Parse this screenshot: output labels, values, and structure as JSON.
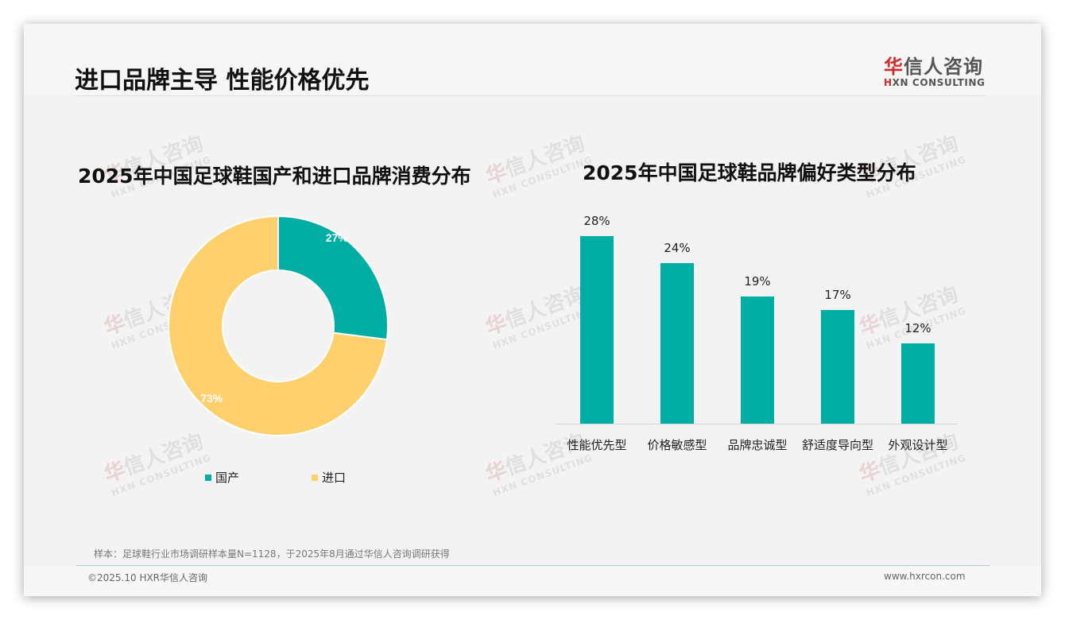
{
  "header": {
    "title": "进口品牌主导 性能价格优先",
    "logo": {
      "cn_red": "华",
      "cn_rest": "信人咨询",
      "en_prefix": "H",
      "en_rest": "XN CONSULTING"
    }
  },
  "left_chart": {
    "title": "2025年中国足球鞋国产和进口品牌消费分布",
    "slices": [
      {
        "label": "国产",
        "value": 27,
        "display": "27%",
        "color": "#00ada3"
      },
      {
        "label": "进口",
        "value": 73,
        "display": "73%",
        "color": "#fdd06d"
      }
    ],
    "legend": [
      {
        "label": "国产",
        "color": "#00ada3"
      },
      {
        "label": "进口",
        "color": "#fdd06d"
      }
    ]
  },
  "right_chart": {
    "title": "2025年中国足球鞋品牌偏好类型分布",
    "bar_color": "#00ada3",
    "bars": [
      {
        "category": "性能优先型",
        "value": 28,
        "display": "28%"
      },
      {
        "category": "价格敏感型",
        "value": 24,
        "display": "24%"
      },
      {
        "category": "品牌忠诚型",
        "value": 19,
        "display": "19%"
      },
      {
        "category": "舒适度导向型",
        "value": 17,
        "display": "17%"
      },
      {
        "category": "外观设计型",
        "value": 12,
        "display": "12%"
      }
    ]
  },
  "chart_data": [
    {
      "type": "pie",
      "title": "2025年中国足球鞋国产和进口品牌消费分布",
      "categories": [
        "国产",
        "进口"
      ],
      "values": [
        27,
        73
      ],
      "unit": "%",
      "donut": true,
      "legend_position": "bottom"
    },
    {
      "type": "bar",
      "title": "2025年中国足球鞋品牌偏好类型分布",
      "categories": [
        "性能优先型",
        "价格敏感型",
        "品牌忠诚型",
        "舒适度导向型",
        "外观设计型"
      ],
      "values": [
        28,
        24,
        19,
        17,
        12
      ],
      "unit": "%",
      "xlabel": "",
      "ylabel": "",
      "ylim": [
        0,
        30
      ],
      "grid": false
    }
  ],
  "watermark": {
    "cn_red": "华",
    "cn_rest": "信人咨询",
    "en": "HXN CONSULTING"
  },
  "footer": {
    "footnote": "样本：足球鞋行业市场调研样本量N=1128，于2025年8月通过华信人咨询调研获得",
    "copyright": "©2025.10 HXR华信人咨询",
    "website": "www.hxrcon.com"
  }
}
